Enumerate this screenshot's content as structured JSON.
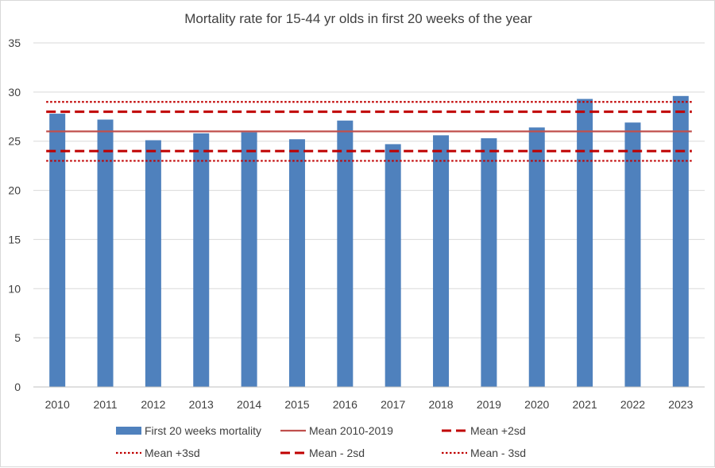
{
  "chart_data": {
    "type": "bar",
    "title": "Mortality rate for 15-44 yr olds in first 20 weeks of the year",
    "xlabel": "",
    "ylabel": "",
    "ylim": [
      0,
      35
    ],
    "yticks": [
      0,
      5,
      10,
      15,
      20,
      25,
      30,
      35
    ],
    "grid": true,
    "legend_position": "bottom",
    "categories": [
      "2010",
      "2011",
      "2012",
      "2013",
      "2014",
      "2015",
      "2016",
      "2017",
      "2018",
      "2019",
      "2020",
      "2021",
      "2022",
      "2023"
    ],
    "series": [
      {
        "name": "First 20 weeks mortality",
        "type": "bar",
        "color": "#4f81bd",
        "values": [
          27.8,
          27.2,
          25.1,
          25.8,
          25.9,
          25.2,
          27.1,
          24.7,
          25.6,
          25.3,
          26.4,
          29.3,
          26.9,
          29.6
        ]
      },
      {
        "name": "Mean 2010-2019",
        "type": "line",
        "style": "solid",
        "color": "#c0504d",
        "value": 26.0
      },
      {
        "name": "Mean +2sd",
        "type": "line",
        "style": "dashed",
        "color": "#c00000",
        "value": 28.0
      },
      {
        "name": "Mean +3sd",
        "type": "line",
        "style": "dotted",
        "color": "#c00000",
        "value": 29.0
      },
      {
        "name": "Mean - 2sd",
        "type": "line",
        "style": "dashed",
        "color": "#c00000",
        "value": 24.0
      },
      {
        "name": "Mean - 3sd",
        "type": "line",
        "style": "dotted",
        "color": "#c00000",
        "value": 23.0
      }
    ]
  }
}
